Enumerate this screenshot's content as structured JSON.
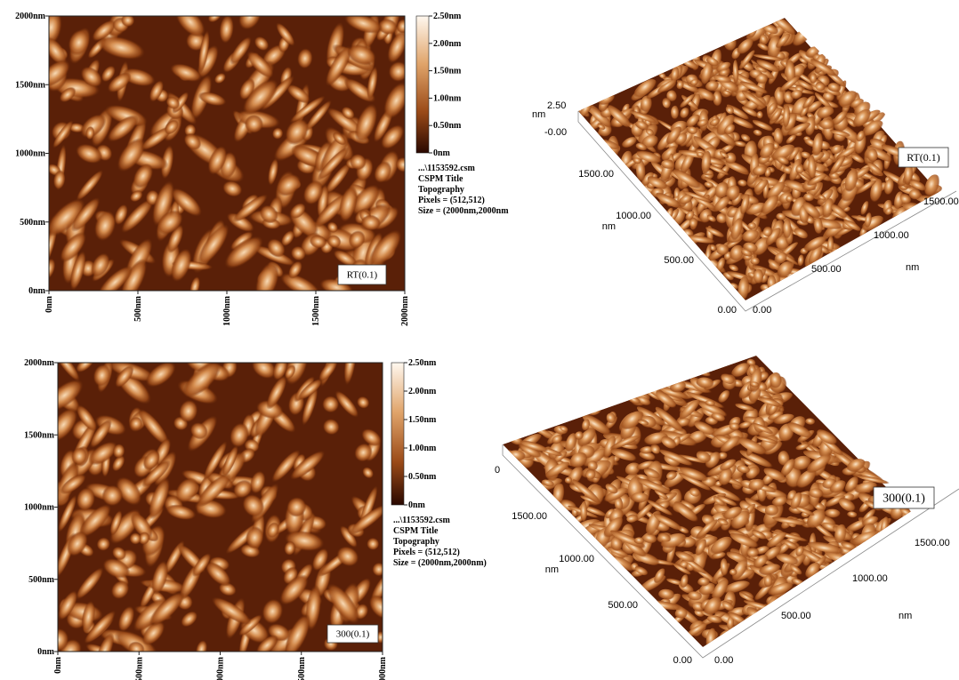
{
  "panels": [
    {
      "kind": "2d",
      "label": "RT(0.1)",
      "y_ticks": [
        "2000nm",
        "1500nm",
        "1000nm",
        "500nm",
        "0nm"
      ],
      "x_ticks": [
        "0nm",
        "500nm",
        "1000nm",
        "1500nm",
        "2000nm"
      ],
      "colorbar": [
        "2.50nm",
        "2.00nm",
        "1.50nm",
        "1.00nm",
        "0.50nm",
        "0nm"
      ],
      "info": [
        "...\\1153592.csm",
        "CSPM Title",
        "Topography",
        "Pixels = (512,512)",
        "Size = (2000nm,2000nm"
      ]
    },
    {
      "kind": "3d",
      "label": "RT(0.1)",
      "z_labels": [
        "nm",
        "2.50",
        "-0.00"
      ],
      "left_axis": [
        "1500.00",
        "1000.00",
        "nm",
        "500.00",
        "0.00"
      ],
      "right_axis": [
        "0.00",
        "500.00",
        "1000.00",
        "1500.00",
        "nm"
      ]
    },
    {
      "kind": "2d",
      "label": "300(0.1)",
      "y_ticks": [
        "2000nm",
        "1500nm",
        "1000nm",
        "500nm",
        "0nm"
      ],
      "x_ticks": [
        "0nm",
        "500nm",
        "000nm",
        "500nm",
        "000nm"
      ],
      "colorbar": [
        "2.50nm",
        "2.00nm",
        "1.50nm",
        "1.00nm",
        "0.50nm",
        "0nm"
      ],
      "info": [
        "...\\1153592.csm",
        "CSPM Title",
        "Topography",
        "Pixels = (512,512)",
        "Size = (2000nm,2000nm)"
      ]
    },
    {
      "kind": "3d",
      "label": "300(0.1)",
      "z_labels": [
        "0"
      ],
      "left_axis": [
        "1500.00",
        "1000.00",
        "nm",
        "500.00",
        "0.00"
      ],
      "right_axis": [
        "0.00",
        "500.00",
        "1000.00",
        "1500.00",
        "nm"
      ]
    }
  ]
}
